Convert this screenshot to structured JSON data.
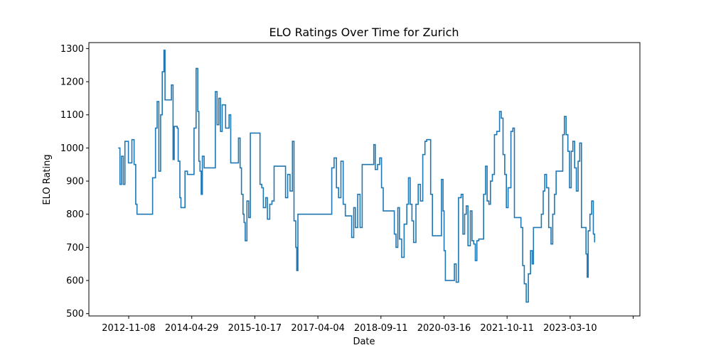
{
  "chart_data": {
    "type": "line",
    "title": "ELO Ratings Over Time for Zurich",
    "xlabel": "Date",
    "ylabel": "ELO Rating",
    "x_ticks": [
      "2012-11-08",
      "2014-04-29",
      "2015-10-17",
      "2017-04-04",
      "2018-09-11",
      "2020-03-16",
      "2021-10-11",
      "2023-03-10",
      ""
    ],
    "y_ticks": [
      500,
      600,
      700,
      800,
      900,
      1000,
      1100,
      1200,
      1300
    ],
    "ylim": [
      493,
      1318
    ],
    "xlim": [
      "2011-08-31",
      "2025-03-18"
    ],
    "grid": false,
    "legend": "none",
    "series": [
      {
        "color": "#1f77b4",
        "points": [
          [
            "2012-05-20",
            1000
          ],
          [
            "2012-06-05",
            890
          ],
          [
            "2012-06-20",
            975
          ],
          [
            "2012-07-05",
            890
          ],
          [
            "2012-07-20",
            1020
          ],
          [
            "2012-08-20",
            955
          ],
          [
            "2012-09-20",
            1025
          ],
          [
            "2012-10-10",
            950
          ],
          [
            "2012-10-25",
            830
          ],
          [
            "2012-11-05",
            800
          ],
          [
            "2013-03-20",
            800
          ],
          [
            "2013-03-25",
            910
          ],
          [
            "2013-04-20",
            1060
          ],
          [
            "2013-05-05",
            1140
          ],
          [
            "2013-05-20",
            930
          ],
          [
            "2013-06-05",
            1100
          ],
          [
            "2013-06-20",
            1230
          ],
          [
            "2013-07-05",
            1295
          ],
          [
            "2013-07-15",
            1145
          ],
          [
            "2013-09-01",
            1145
          ],
          [
            "2013-09-10",
            1190
          ],
          [
            "2013-09-25",
            965
          ],
          [
            "2013-10-05",
            1065
          ],
          [
            "2013-11-01",
            1060
          ],
          [
            "2013-11-10",
            960
          ],
          [
            "2013-11-25",
            850
          ],
          [
            "2013-12-05",
            820
          ],
          [
            "2014-01-01",
            820
          ],
          [
            "2014-01-10",
            930
          ],
          [
            "2014-02-01",
            920
          ],
          [
            "2014-03-10",
            920
          ],
          [
            "2014-04-01",
            1060
          ],
          [
            "2014-04-20",
            1240
          ],
          [
            "2014-05-05",
            1110
          ],
          [
            "2014-05-15",
            960
          ],
          [
            "2014-05-25",
            930
          ],
          [
            "2014-06-05",
            860
          ],
          [
            "2014-06-15",
            975
          ],
          [
            "2014-07-01",
            940
          ],
          [
            "2014-09-20",
            940
          ],
          [
            "2014-10-10",
            1170
          ],
          [
            "2014-10-25",
            1070
          ],
          [
            "2014-11-10",
            1150
          ],
          [
            "2014-11-25",
            1050
          ],
          [
            "2014-12-10",
            1130
          ],
          [
            "2015-01-10",
            1060
          ],
          [
            "2015-02-10",
            1100
          ],
          [
            "2015-02-25",
            955
          ],
          [
            "2015-04-20",
            955
          ],
          [
            "2015-05-05",
            1030
          ],
          [
            "2015-05-20",
            940
          ],
          [
            "2015-06-01",
            860
          ],
          [
            "2015-06-15",
            800
          ],
          [
            "2015-06-25",
            775
          ],
          [
            "2015-07-05",
            720
          ],
          [
            "2015-07-20",
            840
          ],
          [
            "2015-08-05",
            790
          ],
          [
            "2015-08-20",
            1045
          ],
          [
            "2015-11-01",
            1045
          ],
          [
            "2015-11-15",
            890
          ],
          [
            "2015-12-01",
            880
          ],
          [
            "2015-12-15",
            820
          ],
          [
            "2016-01-05",
            850
          ],
          [
            "2016-01-20",
            785
          ],
          [
            "2016-02-10",
            830
          ],
          [
            "2016-03-01",
            840
          ],
          [
            "2016-03-20",
            945
          ],
          [
            "2016-06-15",
            945
          ],
          [
            "2016-07-01",
            850
          ],
          [
            "2016-07-20",
            920
          ],
          [
            "2016-08-10",
            870
          ],
          [
            "2016-09-01",
            1020
          ],
          [
            "2016-09-15",
            780
          ],
          [
            "2016-10-01",
            700
          ],
          [
            "2016-10-10",
            630
          ],
          [
            "2016-10-20",
            800
          ],
          [
            "2017-08-10",
            800
          ],
          [
            "2017-08-20",
            940
          ],
          [
            "2017-09-10",
            970
          ],
          [
            "2017-10-01",
            880
          ],
          [
            "2017-10-20",
            850
          ],
          [
            "2017-11-10",
            960
          ],
          [
            "2017-12-01",
            830
          ],
          [
            "2017-12-20",
            795
          ],
          [
            "2018-02-01",
            795
          ],
          [
            "2018-02-15",
            730
          ],
          [
            "2018-03-05",
            820
          ],
          [
            "2018-03-20",
            760
          ],
          [
            "2018-04-10",
            860
          ],
          [
            "2018-05-01",
            760
          ],
          [
            "2018-05-20",
            950
          ],
          [
            "2018-08-20",
            950
          ],
          [
            "2018-09-01",
            1010
          ],
          [
            "2018-09-15",
            935
          ],
          [
            "2018-10-05",
            950
          ],
          [
            "2018-10-25",
            970
          ],
          [
            "2018-11-10",
            880
          ],
          [
            "2018-11-25",
            810
          ],
          [
            "2019-02-20",
            810
          ],
          [
            "2019-03-05",
            740
          ],
          [
            "2019-03-20",
            700
          ],
          [
            "2019-04-05",
            820
          ],
          [
            "2019-04-20",
            725
          ],
          [
            "2019-05-10",
            670
          ],
          [
            "2019-06-01",
            770
          ],
          [
            "2019-06-25",
            830
          ],
          [
            "2019-07-10",
            910
          ],
          [
            "2019-07-25",
            830
          ],
          [
            "2019-08-10",
            780
          ],
          [
            "2019-08-25",
            715
          ],
          [
            "2019-09-15",
            830
          ],
          [
            "2019-10-05",
            890
          ],
          [
            "2019-10-25",
            840
          ],
          [
            "2019-11-15",
            980
          ],
          [
            "2019-12-05",
            1020
          ],
          [
            "2019-12-20",
            1025
          ],
          [
            "2020-01-10",
            1025
          ],
          [
            "2020-01-25",
            860
          ],
          [
            "2020-02-10",
            735
          ],
          [
            "2020-04-20",
            735
          ],
          [
            "2020-05-01",
            905
          ],
          [
            "2020-05-15",
            810
          ],
          [
            "2020-05-25",
            690
          ],
          [
            "2020-06-05",
            600
          ],
          [
            "2020-08-10",
            600
          ],
          [
            "2020-08-25",
            650
          ],
          [
            "2020-09-10",
            595
          ],
          [
            "2020-10-01",
            850
          ],
          [
            "2020-10-25",
            860
          ],
          [
            "2020-11-10",
            740
          ],
          [
            "2020-11-25",
            800
          ],
          [
            "2020-12-10",
            825
          ],
          [
            "2020-12-25",
            705
          ],
          [
            "2021-01-15",
            810
          ],
          [
            "2021-01-30",
            720
          ],
          [
            "2021-02-15",
            710
          ],
          [
            "2021-03-01",
            660
          ],
          [
            "2021-03-15",
            720
          ],
          [
            "2021-04-01",
            725
          ],
          [
            "2021-05-01",
            725
          ],
          [
            "2021-05-15",
            860
          ],
          [
            "2021-06-01",
            945
          ],
          [
            "2021-06-15",
            840
          ],
          [
            "2021-07-01",
            830
          ],
          [
            "2021-07-15",
            900
          ],
          [
            "2021-08-01",
            920
          ],
          [
            "2021-08-20",
            1040
          ],
          [
            "2021-09-10",
            1050
          ],
          [
            "2021-10-05",
            1110
          ],
          [
            "2021-10-20",
            1090
          ],
          [
            "2021-11-05",
            980
          ],
          [
            "2021-11-20",
            920
          ],
          [
            "2021-12-05",
            820
          ],
          [
            "2021-12-20",
            880
          ],
          [
            "2022-01-15",
            1050
          ],
          [
            "2022-02-01",
            1060
          ],
          [
            "2022-02-15",
            790
          ],
          [
            "2022-04-01",
            790
          ],
          [
            "2022-04-15",
            760
          ],
          [
            "2022-05-01",
            645
          ],
          [
            "2022-05-15",
            590
          ],
          [
            "2022-06-01",
            535
          ],
          [
            "2022-06-20",
            620
          ],
          [
            "2022-07-10",
            690
          ],
          [
            "2022-07-25",
            650
          ],
          [
            "2022-08-05",
            760
          ],
          [
            "2022-10-01",
            760
          ],
          [
            "2022-10-15",
            800
          ],
          [
            "2022-11-01",
            870
          ],
          [
            "2022-11-15",
            920
          ],
          [
            "2022-12-01",
            880
          ],
          [
            "2022-12-20",
            760
          ],
          [
            "2023-01-10",
            710
          ],
          [
            "2023-01-25",
            800
          ],
          [
            "2023-02-10",
            860
          ],
          [
            "2023-02-25",
            930
          ],
          [
            "2023-04-15",
            930
          ],
          [
            "2023-04-25",
            1040
          ],
          [
            "2023-05-10",
            1095
          ],
          [
            "2023-05-25",
            1040
          ],
          [
            "2023-06-10",
            990
          ],
          [
            "2023-06-25",
            880
          ],
          [
            "2023-07-10",
            990
          ],
          [
            "2023-07-25",
            1020
          ],
          [
            "2023-08-10",
            940
          ],
          [
            "2023-08-25",
            870
          ],
          [
            "2023-09-10",
            960
          ],
          [
            "2023-09-25",
            1015
          ],
          [
            "2023-10-10",
            760
          ],
          [
            "2023-11-05",
            760
          ],
          [
            "2023-11-20",
            680
          ],
          [
            "2023-12-01",
            610
          ],
          [
            "2023-12-10",
            750
          ],
          [
            "2023-12-25",
            800
          ],
          [
            "2024-01-10",
            840
          ],
          [
            "2024-01-25",
            740
          ],
          [
            "2024-02-05",
            715
          ]
        ]
      }
    ]
  }
}
